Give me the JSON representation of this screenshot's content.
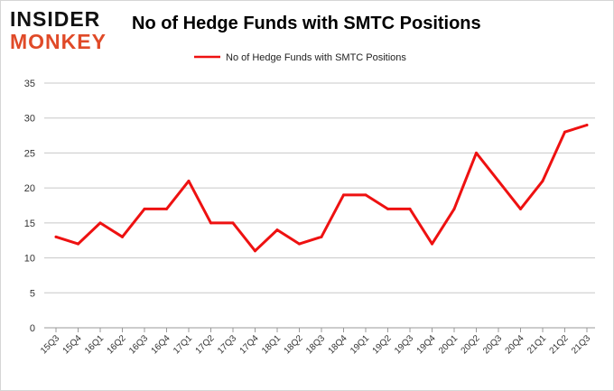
{
  "logo": {
    "line1": "INSIDER",
    "line2": "MONKEY",
    "colors": {
      "line1": "#111111",
      "line2": "#e04a28"
    }
  },
  "chart_data": {
    "type": "line",
    "title": "No of Hedge Funds with SMTC Positions",
    "xlabel": "",
    "ylabel": "",
    "categories": [
      "15Q3",
      "15Q4",
      "16Q1",
      "16Q2",
      "16Q3",
      "16Q4",
      "17Q1",
      "17Q2",
      "17Q3",
      "17Q4",
      "18Q1",
      "18Q2",
      "18Q3",
      "18Q4",
      "19Q1",
      "19Q2",
      "19Q3",
      "19Q4",
      "20Q1",
      "20Q2",
      "20Q3",
      "20Q4",
      "21Q1",
      "21Q2",
      "21Q3"
    ],
    "series": [
      {
        "name": "No of Hedge Funds with SMTC Positions",
        "color": "#ee1111",
        "values": [
          13,
          12,
          15,
          13,
          17,
          17,
          21,
          15,
          15,
          11,
          14,
          12,
          13,
          19,
          19,
          17,
          17,
          12,
          17,
          25,
          21,
          17,
          21,
          28,
          29
        ]
      }
    ],
    "ylim": [
      0,
      35
    ],
    "yticks": [
      0,
      5,
      10,
      15,
      20,
      25,
      30,
      35
    ],
    "grid": true,
    "legend_position": "top-center"
  }
}
